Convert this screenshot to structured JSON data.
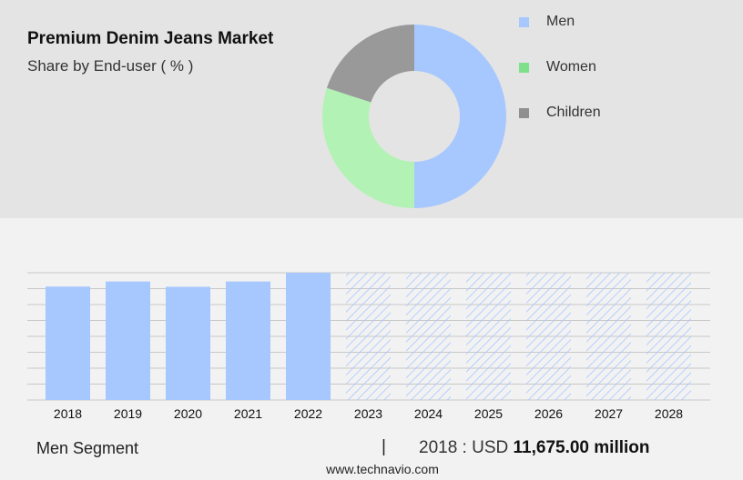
{
  "chart_data": [
    {
      "type": "pie",
      "title": "Premium Denim Jeans Market",
      "subtitle": "Share by End-user ( % )",
      "donut": true,
      "legend_position": "right",
      "series": [
        {
          "name": "Men",
          "value": 50,
          "color": "#a7c7ff"
        },
        {
          "name": "Women",
          "value": 30,
          "color": "#b3f2b5"
        },
        {
          "name": "Children",
          "value": 20,
          "color": "#999999"
        }
      ],
      "legend_colors": {
        "Men": "#a7c7ff",
        "Women": "#7ee08a",
        "Children": "#8f8f8f"
      }
    },
    {
      "type": "bar",
      "categories": [
        "2018",
        "2019",
        "2020",
        "2021",
        "2022",
        "2023",
        "2024",
        "2025",
        "2026",
        "2027",
        "2028"
      ],
      "values": [
        11675,
        12200,
        11650,
        12200,
        13100,
        null,
        null,
        null,
        null,
        null,
        null
      ],
      "forecast_categories": [
        "2023",
        "2024",
        "2025",
        "2026",
        "2027",
        "2028"
      ],
      "ylim": [
        0,
        13100
      ],
      "grid": true,
      "bar_color": "#a7c7ff",
      "forecast_pattern_color": "#a7c7ff"
    }
  ],
  "footer": {
    "segment": "Men Segment",
    "divider": "|",
    "year_label": "2018 : USD",
    "amount": "11,675.00 million"
  },
  "source": "www.technavio.com"
}
